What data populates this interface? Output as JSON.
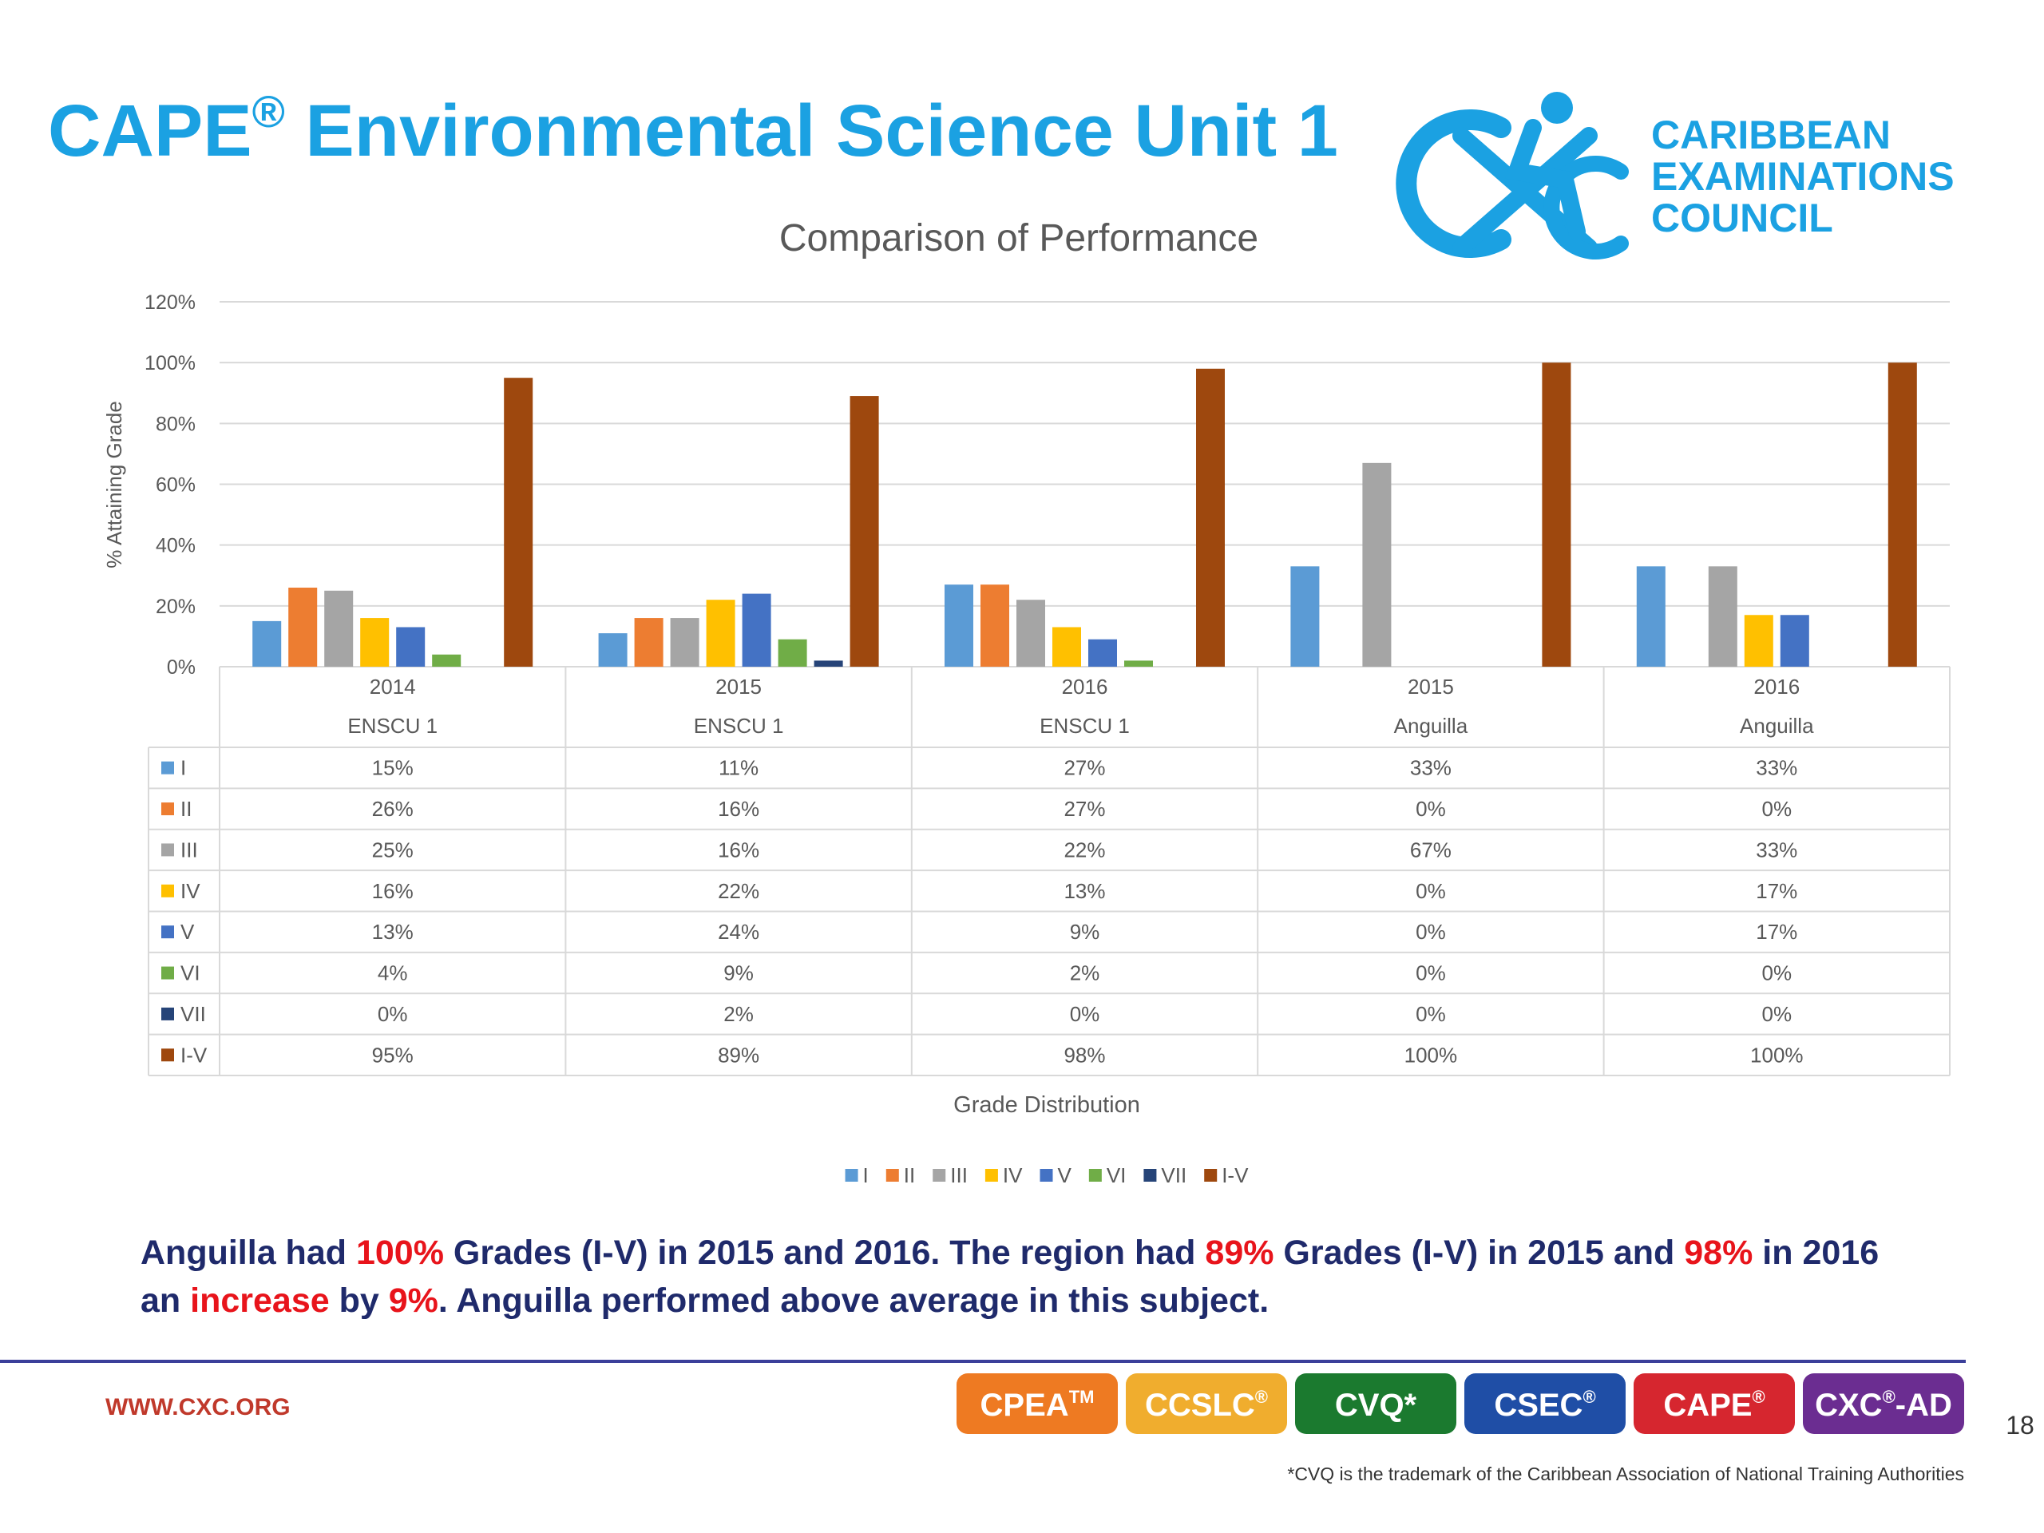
{
  "slide": {
    "title": {
      "main": "CAPE",
      "sup": "®",
      "rest": " Environmental Science Unit 1"
    },
    "logo_lines": [
      "CARIBBEAN",
      "EXAMINATIONS",
      "COUNCIL"
    ],
    "summary_lines": [
      [
        {
          "text": "Anguilla had "
        },
        {
          "text": "100%",
          "emphasis": true
        },
        {
          "text": " Grades (I-V) in 2015 and 2016. The region had "
        },
        {
          "text": "89%",
          "emphasis": true
        },
        {
          "text": " Grades (I-V) in 2015 and "
        },
        {
          "text": "98%",
          "emphasis": true
        },
        {
          "text": " in 2016"
        }
      ],
      [
        {
          "text": "an "
        },
        {
          "text": "increase",
          "emphasis": true
        },
        {
          "text": " by "
        },
        {
          "text": "9%",
          "emphasis": true
        },
        {
          "text": ". Anguilla performed above average in this subject."
        }
      ]
    ],
    "website": "WWW.CXC.ORG",
    "badges": [
      {
        "text": "CPEA",
        "sup": "TM",
        "color": "#ee7a22"
      },
      {
        "text": "CCSLC",
        "sup": "®",
        "color": "#f0ad2e"
      },
      {
        "text": "CVQ*",
        "color": "#1b7a2f"
      },
      {
        "text": "CSEC",
        "sup": "®",
        "color": "#1f4ea6"
      },
      {
        "text": "CAPE",
        "sup": "®",
        "color": "#d6262f"
      },
      {
        "text": "CXC",
        "sup": "®",
        "after": "-AD",
        "color": "#6b2d91"
      }
    ],
    "page_number": "18",
    "footnote": "*CVQ is the trademark of the Caribbean Association of National Training Authorities"
  },
  "chart_data": {
    "type": "bar",
    "title": "Comparison of Performance",
    "y_label": "% Attaining Grade",
    "x_label": "Grade Distribution",
    "categories": [
      "2014",
      "2015",
      "2016",
      "2015",
      "2016"
    ],
    "category_groups": [
      "ENSCU 1",
      "ENSCU 1",
      "ENSCU 1",
      "Anguilla",
      "Anguilla"
    ],
    "ylim": [
      0,
      120
    ],
    "yticks": [
      {
        "value": 0,
        "label": "0%"
      },
      {
        "value": 20,
        "label": "20%"
      },
      {
        "value": 40,
        "label": "40%"
      },
      {
        "value": 60,
        "label": "60%"
      },
      {
        "value": 80,
        "label": "80%"
      },
      {
        "value": 100,
        "label": "100%"
      },
      {
        "value": 120,
        "label": "120%"
      }
    ],
    "grid": true,
    "legend": "bottom",
    "series": [
      {
        "name": "I",
        "color": "#5b9bd5",
        "values": [
          15,
          11,
          27,
          33,
          33
        ],
        "value_labels": [
          "15%",
          "11%",
          "27%",
          "33%",
          "33%"
        ]
      },
      {
        "name": "II",
        "color": "#ed7d31",
        "values": [
          26,
          16,
          27,
          0,
          0
        ],
        "value_labels": [
          "26%",
          "16%",
          "27%",
          "0%",
          "0%"
        ]
      },
      {
        "name": "III",
        "color": "#a5a5a5",
        "values": [
          25,
          16,
          22,
          67,
          33
        ],
        "value_labels": [
          "25%",
          "16%",
          "22%",
          "67%",
          "33%"
        ]
      },
      {
        "name": "IV",
        "color": "#ffc000",
        "values": [
          16,
          22,
          13,
          0,
          17
        ],
        "value_labels": [
          "16%",
          "22%",
          "13%",
          "0%",
          "17%"
        ]
      },
      {
        "name": "V",
        "color": "#4472c4",
        "values": [
          13,
          24,
          9,
          0,
          17
        ],
        "value_labels": [
          "13%",
          "24%",
          "9%",
          "0%",
          "17%"
        ]
      },
      {
        "name": "VI",
        "color": "#70ad47",
        "values": [
          4,
          9,
          2,
          0,
          0
        ],
        "value_labels": [
          "4%",
          "9%",
          "2%",
          "0%",
          "0%"
        ]
      },
      {
        "name": "VII",
        "color": "#264478",
        "values": [
          0,
          2,
          0,
          0,
          0
        ],
        "value_labels": [
          "0%",
          "2%",
          "0%",
          "0%",
          "0%"
        ]
      },
      {
        "name": "I-V",
        "color": "#9e480e",
        "values": [
          95,
          89,
          98,
          100,
          100
        ],
        "value_labels": [
          "95%",
          "89%",
          "98%",
          "100%",
          "100%"
        ]
      }
    ]
  }
}
